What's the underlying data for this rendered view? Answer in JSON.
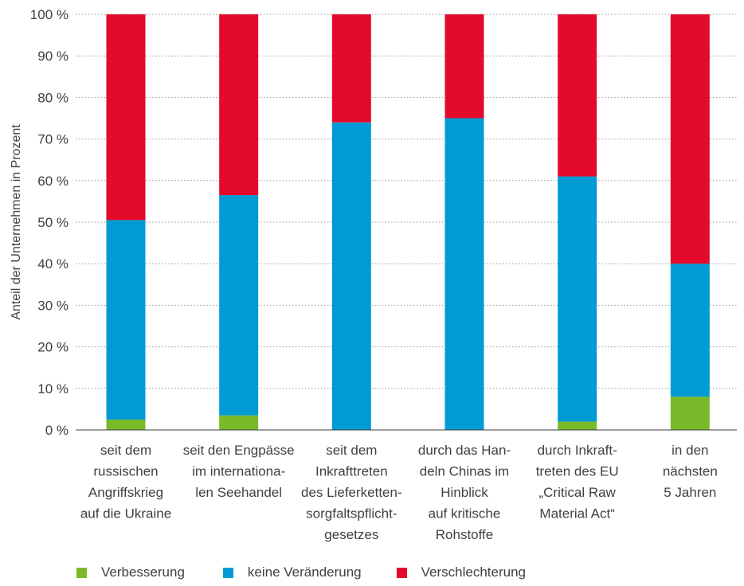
{
  "chart_data": {
    "type": "bar",
    "stacked": true,
    "ylabel": "Anteil der Unternehmen in Prozent",
    "ylim": [
      0,
      100
    ],
    "yticks": [
      "0 %",
      "10 %",
      "20 %",
      "30 %",
      "40 %",
      "50 %",
      "60 %",
      "70 %",
      "80 %",
      "90 %",
      "100 %"
    ],
    "grid": "horizontal dotted",
    "legend_position": "bottom",
    "categories": [
      [
        "seit dem",
        "russischen",
        "Angriffskrieg",
        "auf die Ukraine"
      ],
      [
        "seit den Engpässe",
        "im internationa-",
        "len Seehandel"
      ],
      [
        "seit dem",
        "Inkrafttreten",
        "des Lieferketten-",
        "sorgfaltspflicht-",
        "gesetzes"
      ],
      [
        "durch das Han-",
        "deln Chinas im",
        "Hinblick",
        "auf kritische",
        "Rohstoffe"
      ],
      [
        "durch Inkraft-",
        "treten des EU",
        "„Critical Raw",
        "Material Act“"
      ],
      [
        "in den",
        "nächsten",
        "5 Jahren"
      ]
    ],
    "series": [
      {
        "name": "Verbesserung",
        "color": "#7ab929",
        "values": [
          2.5,
          3.5,
          0,
          0,
          2,
          8
        ]
      },
      {
        "name": "keine Veränderung",
        "color": "#009bd5",
        "values": [
          48,
          53,
          74,
          75,
          59,
          32
        ]
      },
      {
        "name": "Verschlechterung",
        "color": "#e30a2c",
        "values": [
          49.5,
          43.5,
          26,
          25,
          39,
          60
        ]
      }
    ]
  }
}
